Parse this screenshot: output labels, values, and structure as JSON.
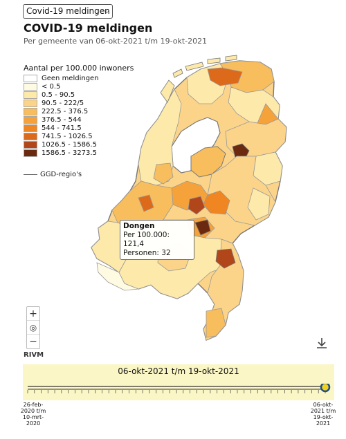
{
  "selector": {
    "value": "Covid-19 meldingen",
    "icon": "chevron-down-icon"
  },
  "header": {
    "title": "COVID-19 meldingen",
    "subtitle": "Per gemeente van 06-okt-2021 t/m 19-okt-2021"
  },
  "legend": {
    "title": "Aantal per 100.000 inwoners",
    "items": [
      {
        "label": "Geen meldingen",
        "color": "#ffffff"
      },
      {
        "label": "< 0.5",
        "color": "#fffbe3"
      },
      {
        "label": "0.5 - 90.5",
        "color": "#fde9a9"
      },
      {
        "label": "90.5 - 222/5",
        "color": "#fbd48a"
      },
      {
        "label": "222.5 - 376.5",
        "color": "#f8bd5c"
      },
      {
        "label": "376.5 - 544",
        "color": "#f5a23a"
      },
      {
        "label": "544 - 741.5",
        "color": "#ef8621"
      },
      {
        "label": "741.5 - 1026.5",
        "color": "#dc6a1a"
      },
      {
        "label": "1026.5 - 1586.5",
        "color": "#b0461a"
      },
      {
        "label": "1586.5 - 3273.5",
        "color": "#6b2a0f"
      }
    ],
    "ggd_label": "GGD-regio's"
  },
  "tooltip": {
    "name": "Dongen",
    "per100k": "Per 100.000: 121,4",
    "persons": "Personen: 32"
  },
  "controls": {
    "zoom_in": "+",
    "zoom_out": "−",
    "locate_icon": "target-icon",
    "download_icon": "download-icon"
  },
  "attribution": "RIVM",
  "timeline": {
    "label": "06-okt-2021 t/m 19-okt-2021",
    "start_label": [
      "26-feb-",
      "2020 t/m",
      "10-mrt-",
      "2020"
    ],
    "end_label": [
      "06-okt-",
      "2021 t/m",
      "19-okt-",
      "2021"
    ],
    "position": 1.0
  }
}
